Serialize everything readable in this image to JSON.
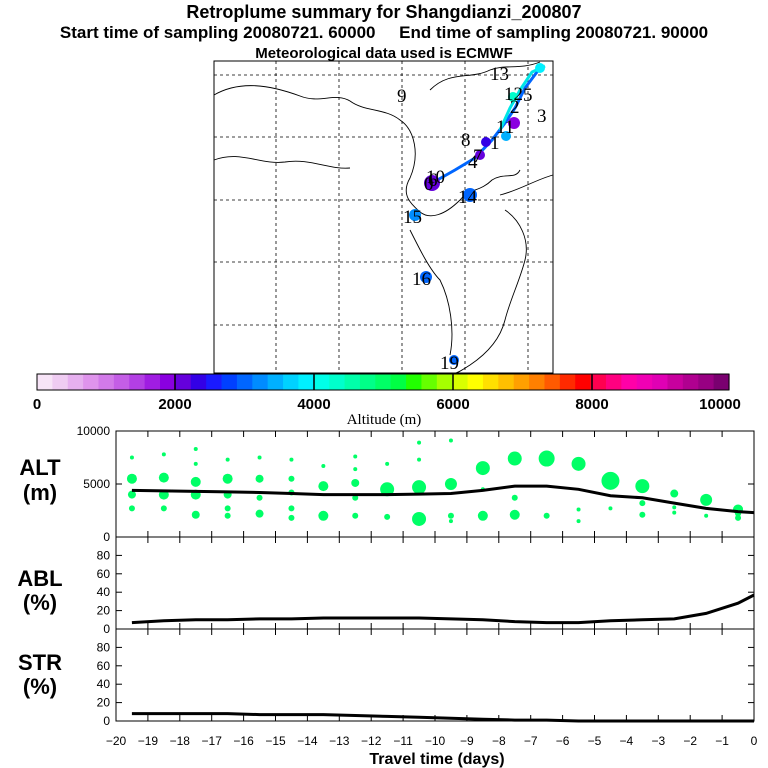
{
  "header": {
    "title": "Retroplume summary for Shangdianzi_200807",
    "start_label": "Start time of sampling 20080721. 60000",
    "end_label": "End time of sampling 20080721. 90000",
    "met_label": "Meteorological data used is ECMWF"
  },
  "colors": {
    "map_frame": "#000000",
    "curve": "#000000",
    "alt_dots": "#00ff66"
  },
  "map": {
    "plume_labels": [
      "0",
      "1",
      "2",
      "3",
      "4",
      "5",
      "6",
      "7",
      "8",
      "9",
      "10",
      "11",
      "12",
      "13",
      "14",
      "15",
      "16",
      "19"
    ]
  },
  "colorbar": {
    "label": "Altitude (m)",
    "ticks": [
      "0",
      "2000",
      "4000",
      "6000",
      "8000",
      "10000"
    ],
    "colors": [
      "#f7e4f7",
      "#efccf2",
      "#e6b0ef",
      "#df94ec",
      "#d27ae9",
      "#c45ee6",
      "#b33fe4",
      "#a01de2",
      "#8a00e0",
      "#6500dc",
      "#3300e6",
      "#1a1aff",
      "#0040ff",
      "#0066ff",
      "#008cff",
      "#00b0ff",
      "#00d2ff",
      "#00f0ff",
      "#00ffe8",
      "#00ffcc",
      "#00ffaa",
      "#00ff88",
      "#00ff66",
      "#00ff44",
      "#22ff00",
      "#66ff00",
      "#a6ff00",
      "#d9ff00",
      "#ffff00",
      "#ffe000",
      "#ffc000",
      "#ffa000",
      "#ff8000",
      "#ff5a00",
      "#ff2a00",
      "#ff0000",
      "#ff0050",
      "#ff0080",
      "#ff00a8",
      "#f000b4",
      "#e000b4",
      "#c8009e",
      "#b00090",
      "#980082",
      "#7a0070"
    ]
  },
  "chart_data": [
    {
      "type": "line",
      "panel": "ALT",
      "ylabel": "ALT\n(m)",
      "ylim": [
        0,
        10000
      ],
      "yticks": [
        "10000",
        "5000",
        "0"
      ],
      "xlim": [
        -20,
        0
      ],
      "x": [
        -19.5,
        -18.5,
        -17.5,
        -16.5,
        -15.5,
        -14.5,
        -13.5,
        -12.5,
        -11.5,
        -10.5,
        -9.5,
        -8.5,
        -7.5,
        -6.5,
        -5.5,
        -4.5,
        -3.5,
        -2.5,
        -1.5,
        -0.5,
        0
      ],
      "values": [
        4400,
        4350,
        4300,
        4250,
        4200,
        4100,
        4000,
        4000,
        4000,
        4050,
        4100,
        4400,
        4800,
        4800,
        4500,
        3900,
        3700,
        3200,
        2700,
        2400,
        2300
      ],
      "dots": [
        {
          "x": -19.5,
          "ys": [
            7500,
            5500,
            4000,
            2700
          ],
          "r": [
            2,
            5,
            4,
            3
          ]
        },
        {
          "x": -18.5,
          "ys": [
            7800,
            5600,
            4000,
            2700
          ],
          "r": [
            2,
            5,
            5,
            3
          ]
        },
        {
          "x": -17.5,
          "ys": [
            8300,
            6900,
            5200,
            4000,
            2100
          ],
          "r": [
            2,
            2,
            5,
            5,
            4
          ]
        },
        {
          "x": -16.5,
          "ys": [
            7300,
            5500,
            4000,
            2700,
            2000
          ],
          "r": [
            2,
            5,
            4,
            3,
            3
          ]
        },
        {
          "x": -15.5,
          "ys": [
            7500,
            5500,
            3700,
            2200
          ],
          "r": [
            2,
            4,
            3,
            4
          ]
        },
        {
          "x": -14.5,
          "ys": [
            7300,
            5500,
            4200,
            2700,
            1800
          ],
          "r": [
            2,
            3,
            3,
            3,
            3
          ]
        },
        {
          "x": -13.5,
          "ys": [
            6700,
            4800,
            2000
          ],
          "r": [
            2,
            5,
            5
          ]
        },
        {
          "x": -12.5,
          "ys": [
            7600,
            6400,
            5100,
            3700,
            2000
          ],
          "r": [
            2,
            2,
            4,
            3,
            3
          ]
        },
        {
          "x": -11.5,
          "ys": [
            6900,
            4500,
            1900
          ],
          "r": [
            2,
            7,
            3
          ]
        },
        {
          "x": -10.5,
          "ys": [
            8900,
            7300,
            4700,
            1700
          ],
          "r": [
            2,
            2,
            7,
            7
          ]
        },
        {
          "x": -9.5,
          "ys": [
            9100,
            5000,
            2000,
            1500
          ],
          "r": [
            2,
            6,
            3,
            2
          ]
        },
        {
          "x": -8.5,
          "ys": [
            6500,
            4500,
            2000
          ],
          "r": [
            7,
            2,
            5
          ]
        },
        {
          "x": -7.5,
          "ys": [
            7400,
            3700,
            2100
          ],
          "r": [
            7,
            3,
            5
          ]
        },
        {
          "x": -6.5,
          "ys": [
            7400,
            2000
          ],
          "r": [
            8,
            3
          ]
        },
        {
          "x": -5.5,
          "ys": [
            6900,
            2600,
            1500
          ],
          "r": [
            7,
            2,
            2
          ]
        },
        {
          "x": -4.5,
          "ys": [
            5300,
            2700
          ],
          "r": [
            9,
            2
          ]
        },
        {
          "x": -3.5,
          "ys": [
            4800,
            3200,
            2100
          ],
          "r": [
            7,
            3,
            3
          ]
        },
        {
          "x": -2.5,
          "ys": [
            4100,
            2800,
            2300
          ],
          "r": [
            4,
            2,
            2
          ]
        },
        {
          "x": -1.5,
          "ys": [
            3500,
            2000
          ],
          "r": [
            6,
            2
          ]
        },
        {
          "x": -0.5,
          "ys": [
            2600,
            2200,
            1800
          ],
          "r": [
            5,
            3,
            3
          ]
        }
      ]
    },
    {
      "type": "line",
      "panel": "ABL",
      "ylabel": "ABL\n(%)",
      "ylim": [
        0,
        100
      ],
      "yticks": [
        "0",
        "20",
        "40",
        "60",
        "80"
      ],
      "xlim": [
        -20,
        0
      ],
      "x": [
        -19.5,
        -18.5,
        -17.5,
        -16.5,
        -15.5,
        -14.5,
        -13.5,
        -12.5,
        -11.5,
        -10.5,
        -9.5,
        -8.5,
        -7.5,
        -6.5,
        -5.5,
        -4.5,
        -3.5,
        -2.5,
        -1.5,
        -0.5,
        0
      ],
      "values": [
        7,
        9,
        10,
        10,
        11,
        11,
        12,
        12,
        12,
        12,
        11,
        10,
        8,
        7,
        7,
        9,
        10,
        11,
        17,
        28,
        37
      ]
    },
    {
      "type": "line",
      "panel": "STR",
      "ylabel": "STR\n(%)",
      "ylim": [
        0,
        100
      ],
      "yticks": [
        "0",
        "20",
        "40",
        "60",
        "80"
      ],
      "xlim": [
        -20,
        0
      ],
      "x": [
        -19.5,
        -18.5,
        -17.5,
        -16.5,
        -15.5,
        -14.5,
        -13.5,
        -12.5,
        -11.5,
        -10.5,
        -9.5,
        -8.5,
        -7.5,
        -6.5,
        -5.5,
        -4.5,
        -3.5,
        -2.5,
        -1.5,
        -0.5,
        0
      ],
      "values": [
        8,
        8,
        8,
        8,
        7,
        7,
        7,
        6,
        5,
        4,
        3,
        2,
        1,
        1,
        0,
        0,
        0,
        0,
        0,
        0,
        0
      ]
    }
  ],
  "xaxis": {
    "label": "Travel time (days)",
    "ticks": [
      "−20",
      "−19",
      "−18",
      "−17",
      "−16",
      "−15",
      "−14",
      "−13",
      "−12",
      "−11",
      "−10",
      "−9",
      "−8",
      "−7",
      "−6",
      "−5",
      "−4",
      "−3",
      "−2",
      "−1",
      "0"
    ]
  }
}
